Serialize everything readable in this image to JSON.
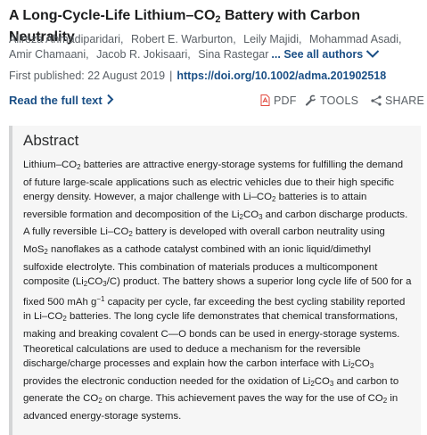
{
  "article": {
    "title_parts": [
      "A Long-Cycle-Life Lithium–CO",
      "2",
      " Battery with Carbon Neutrality"
    ],
    "authors": [
      "Alireza Ahmadiparidari,",
      "Robert E. Warburton,",
      "Leily Majidi,",
      "Mohammad Asadi,",
      "Amir Chamaani,",
      "Jacob R. Jokisaari,",
      "Sina Rastegar"
    ],
    "see_all_label": "... See all authors",
    "first_published_label": "First published: 22 August 2019",
    "separator": "|",
    "doi_link": "https://doi.org/10.1002/adma.201902518"
  },
  "actions": {
    "read_full_label": "Read the full text",
    "pdf_label": "PDF",
    "tools_label": "TOOLS",
    "share_label": "SHARE"
  },
  "abstract": {
    "heading": "Abstract",
    "segments": [
      "Lithium–CO",
      "2",
      " batteries are attractive energy-storage systems for fulfilling the demand of future large-scale applications such as electric vehicles due to their high specific energy density. However, a major challenge with Li–CO",
      "2",
      " batteries is to attain reversible formation and decomposition of the Li",
      "2",
      "CO",
      "3",
      " and carbon discharge products. A fully reversible Li–CO",
      "2",
      " battery is developed with overall carbon neutrality using MoS",
      "2",
      " nanoflakes as a cathode catalyst combined with an ionic liquid/dimethyl sulfoxide electrolyte. This combination of materials produces a multicomponent composite (Li",
      "2",
      "CO",
      "3",
      "/C) product. The battery shows a superior long cycle life of 500 for a fixed 500 mAh g",
      "−1",
      " capacity per cycle, far exceeding the best cycling stability reported in Li–CO",
      "2",
      " batteries. The long cycle life demonstrates that chemical transformations, making and breaking covalent C—O bonds can be used in energy-storage systems. Theoretical calculations are used to deduce a mechanism for the reversible discharge/charge processes and explain how the carbon interface with Li",
      "2",
      "CO",
      "3",
      " provides the electronic conduction needed for the oxidation of Li",
      "2",
      "CO",
      "3",
      " and carbon to generate the CO",
      "2",
      " on charge. This achievement paves the way for the use of CO",
      "2",
      " in advanced energy-storage systems."
    ]
  },
  "colors": {
    "link": "#1a4f86",
    "pdf_icon": "#e2483d",
    "abstract_bg": "#f6f6f6",
    "abstract_rule": "#d4d5d6"
  },
  "icons": [
    "chevron-down-icon",
    "chevron-right-icon",
    "pdf-icon",
    "wrench-icon",
    "share-icon"
  ]
}
